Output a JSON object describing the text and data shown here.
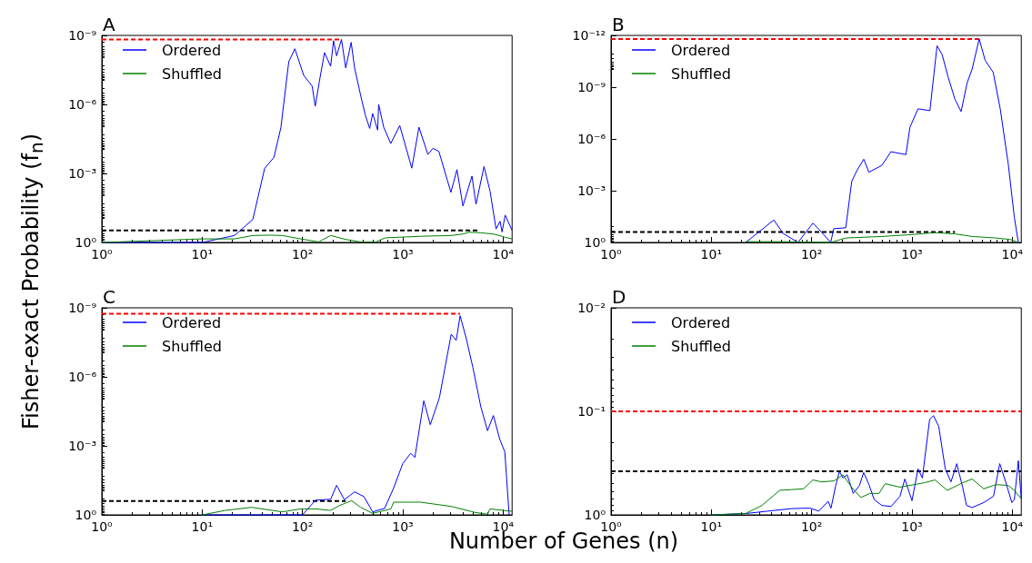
{
  "chart_data": [
    {
      "type": "line",
      "title": "A",
      "ylabel": "Fisher-exact Probability (f$_{n}$)",
      "log": "xy",
      "legend": "top left",
      "xlim": [
        1,
        12300
      ],
      "ylim": [
        1,
        1e-09
      ],
      "xticks": [
        {
          "value": 1,
          "label": "10⁰"
        },
        {
          "value": 10,
          "label": "10¹"
        },
        {
          "value": 100,
          "label": "10²"
        },
        {
          "value": 1000,
          "label": "10³"
        },
        {
          "value": 10000,
          "label": "10⁴"
        }
      ],
      "yticks": [
        {
          "value": 1,
          "label": "10⁰"
        },
        {
          "value": 0.001,
          "label": "10⁻³"
        },
        {
          "value": 1e-06,
          "label": "10⁻⁶"
        },
        {
          "value": 1e-09,
          "label": "10⁻⁹"
        }
      ],
      "series": [
        {
          "color": "#ff0000",
          "line_style": "dashed",
          "x": [
            1,
            245
          ],
          "values": [
            1.5e-09,
            1.5e-09
          ]
        },
        {
          "color": "#000000",
          "line_style": "dashed",
          "x": [
            1,
            5600
          ],
          "values": [
            0.3,
            0.3
          ]
        },
        {
          "name": "Ordered",
          "color": "#0000ff",
          "x": [
            1,
            10,
            21,
            32,
            42,
            52,
            61,
            73,
            84,
            103,
            125,
            134,
            150,
            166,
            191,
            204,
            219,
            245,
            270,
            306,
            331,
            380,
            423,
            468,
            501,
            562,
            575,
            646,
            759,
            933,
            1230,
            1450,
            1780,
            2000,
            2290,
            3020,
            3470,
            3980,
            4900,
            5370,
            6460,
            7410,
            8510,
            9330,
            9770,
            10500,
            12300
          ],
          "values": [
            1,
            1,
            0.5,
            0.1,
            0.0006,
            0.0002,
            1e-05,
            1.4e-08,
            3.8e-09,
            5.5e-08,
            1.6e-07,
            1.2e-06,
            6.5e-08,
            5.6e-09,
            2.2e-08,
            1.7e-09,
            7.7e-09,
            1.5e-09,
            2.6e-08,
            2e-09,
            2.6e-08,
            4e-07,
            2.9e-06,
            1.1e-05,
            2.5e-06,
            1.3e-05,
            1e-06,
            9.8e-06,
            5e-05,
            8.3e-06,
            0.00059,
            9.8e-06,
            0.00015,
            8.1e-05,
            0.00011,
            0.0066,
            0.00068,
            0.026,
            0.0013,
            0.022,
            0.0005,
            0.0058,
            0.26,
            0.12,
            0.35,
            0.065,
            0.3
          ]
        },
        {
          "name": "Shuffled",
          "color": "#008000",
          "x": [
            1,
            10,
            21,
            32,
            48,
            63,
            96,
            145,
            191,
            270,
            380,
            540,
            670,
            1500,
            3020,
            3980,
            4600,
            6000,
            8000,
            9770,
            10500,
            12300
          ],
          "values": [
            1,
            0.7,
            0.7,
            0.5,
            0.48,
            0.5,
            0.7,
            0.95,
            0.5,
            0.74,
            0.95,
            0.95,
            0.63,
            0.54,
            0.5,
            0.43,
            0.36,
            0.38,
            0.43,
            0.54,
            0.6,
            0.7
          ]
        }
      ]
    },
    {
      "type": "line",
      "title": "B",
      "log": "xy",
      "legend": "top left",
      "xlim": [
        1,
        12300
      ],
      "ylim": [
        1,
        1e-12
      ],
      "xticks": [
        {
          "value": 1,
          "label": "10⁰"
        },
        {
          "value": 10,
          "label": "10¹"
        },
        {
          "value": 100,
          "label": "10²"
        },
        {
          "value": 1000,
          "label": "10³"
        },
        {
          "value": 10000,
          "label": "10⁴"
        }
      ],
      "yticks": [
        {
          "value": 1,
          "label": "10⁰"
        },
        {
          "value": 0.001,
          "label": "10⁻³"
        },
        {
          "value": 1e-06,
          "label": "10⁻⁶"
        },
        {
          "value": 1e-09,
          "label": "10⁻⁹"
        },
        {
          "value": 1e-12,
          "label": "10⁻¹²"
        }
      ],
      "series": [
        {
          "color": "#ff0000",
          "line_style": "dashed",
          "x": [
            1,
            4680
          ],
          "values": [
            1.6e-12,
            1.6e-12
          ]
        },
        {
          "color": "#000000",
          "line_style": "dashed",
          "x": [
            1,
            2690
          ],
          "values": [
            0.25,
            0.25
          ]
        },
        {
          "name": "Ordered",
          "color": "#0000ff",
          "x": [
            22,
            42,
            52,
            73,
            103,
            118,
            155,
            166,
            219,
            251,
            282,
            331,
            372,
            501,
            617,
            871,
            955,
            1150,
            1510,
            1780,
            2000,
            2290,
            2690,
            3090,
            3550,
            3980,
            4680,
            5370,
            6460,
            7590,
            9120,
            10500,
            11500
          ],
          "values": [
            1,
            0.05,
            0.3,
            1,
            0.076,
            0.17,
            1,
            0.16,
            0.14,
            0.00029,
            7e-05,
            1.5e-05,
            8.5e-05,
            3.4e-05,
            5.5e-06,
            8.1e-06,
            2.1e-07,
            1.8e-08,
            2.3e-08,
            4e-12,
            1.3e-11,
            2.5e-10,
            5.2e-09,
            2.6e-08,
            5.6e-10,
            9e-11,
            1.6e-12,
            2.8e-11,
            1.4e-10,
            1.8e-08,
            2.8e-05,
            0.036,
            1
          ]
        },
        {
          "name": "Shuffled",
          "color": "#008000",
          "x": [
            22,
            52,
            155,
            219,
            501,
            1000,
            1690,
            2690,
            3980,
            6900,
            9500,
            11500
          ],
          "values": [
            0.9,
            0.9,
            1,
            0.55,
            0.45,
            0.35,
            0.27,
            0.32,
            0.45,
            0.55,
            0.67,
            1
          ]
        }
      ]
    },
    {
      "type": "line",
      "title": "C",
      "xlabel": "Number of Genes (n)",
      "log": "xy",
      "legend": "top left",
      "xlim": [
        1,
        12300
      ],
      "ylim": [
        1,
        1e-09
      ],
      "xticks": [
        {
          "value": 1,
          "label": "10⁰"
        },
        {
          "value": 10,
          "label": "10¹"
        },
        {
          "value": 100,
          "label": "10²"
        },
        {
          "value": 1000,
          "label": "10³"
        },
        {
          "value": 10000,
          "label": "10⁴"
        }
      ],
      "yticks": [
        {
          "value": 1,
          "label": "10⁰"
        },
        {
          "value": 0.001,
          "label": "10⁻³"
        },
        {
          "value": 1e-06,
          "label": "10⁻⁶"
        },
        {
          "value": 1e-09,
          "label": "10⁻⁹"
        }
      ],
      "series": [
        {
          "color": "#ff0000",
          "line_style": "dashed",
          "x": [
            1,
            3730
          ],
          "values": [
            1.8e-09,
            1.8e-09
          ]
        },
        {
          "color": "#000000",
          "line_style": "dashed",
          "x": [
            1,
            270
          ],
          "values": [
            0.25,
            0.25
          ]
        },
        {
          "name": "Ordered",
          "color": "#0000ff",
          "x": [
            10,
            100,
            135,
            191,
            219,
            262,
            331,
            410,
            501,
            660,
            813,
            1000,
            1200,
            1320,
            1620,
            1880,
            2320,
            3040,
            3410,
            3730,
            4300,
            5000,
            6000,
            7000,
            8000,
            9300,
            10400,
            11500
          ],
          "values": [
            1,
            1,
            0.23,
            0.21,
            0.052,
            0.22,
            0.1,
            0.16,
            0.74,
            0.52,
            0.066,
            0.0059,
            0.0021,
            0.0032,
            1.1e-05,
            0.00012,
            8e-06,
            1.4e-08,
            2.6e-08,
            2.2e-09,
            2.2e-08,
            3.9e-07,
            2e-05,
            0.00022,
            4.8e-05,
            0.00054,
            0.0018,
            1
          ]
        },
        {
          "name": "Shuffled",
          "color": "#008000",
          "x": [
            10,
            17,
            31,
            63,
            96,
            135,
            191,
            232,
            309,
            380,
            501,
            760,
            813,
            1500,
            3040,
            5300,
            7000,
            7400,
            10400,
            12300
          ],
          "values": [
            1,
            0.64,
            0.47,
            0.74,
            0.55,
            0.55,
            0.64,
            0.4,
            0.24,
            0.47,
            0.86,
            0.55,
            0.28,
            0.28,
            0.43,
            0.79,
            0.94,
            0.55,
            0.65,
            0.7
          ]
        }
      ]
    },
    {
      "type": "line",
      "title": "D",
      "log": "xy",
      "legend": "top left",
      "xlim": [
        1,
        12300
      ],
      "ylim": [
        1,
        0.01
      ],
      "xticks": [
        {
          "value": 1,
          "label": "10⁰"
        },
        {
          "value": 10,
          "label": "10¹"
        },
        {
          "value": 100,
          "label": "10²"
        },
        {
          "value": 1000,
          "label": "10³"
        },
        {
          "value": 10000,
          "label": "10⁴"
        }
      ],
      "yticks": [
        {
          "value": 1,
          "label": "10⁰"
        },
        {
          "value": 0.1,
          "label": "10⁻¹"
        },
        {
          "value": 0.01,
          "label": "10⁻²"
        }
      ],
      "series": [
        {
          "color": "#ff0000",
          "line_style": "dashed",
          "x": [
            1,
            12300
          ],
          "values": [
            0.1,
            0.1
          ]
        },
        {
          "color": "#000000",
          "line_style": "dashed",
          "x": [
            1,
            12300
          ],
          "values": [
            0.38,
            0.38
          ]
        },
        {
          "name": "Ordered",
          "color": "#0000ff",
          "x": [
            10,
            22,
            63,
            96,
            118,
            146,
            156,
            174,
            189,
            205,
            226,
            260,
            300,
            330,
            370,
            420,
            500,
            620,
            760,
            850,
            1000,
            1150,
            1270,
            1500,
            1640,
            1850,
            2150,
            2450,
            2800,
            3200,
            3500,
            3980,
            5200,
            6500,
            7500,
            8600,
            9900,
            10500,
            11500,
            12300
          ],
          "values": [
            1,
            0.97,
            0.87,
            0.86,
            0.92,
            0.74,
            0.86,
            0.52,
            0.38,
            0.44,
            0.41,
            0.62,
            0.52,
            0.39,
            0.5,
            0.71,
            0.81,
            0.83,
            0.66,
            0.45,
            0.73,
            0.36,
            0.44,
            0.12,
            0.11,
            0.14,
            0.36,
            0.48,
            0.32,
            0.54,
            0.81,
            0.85,
            0.76,
            0.66,
            0.32,
            0.48,
            0.76,
            0.71,
            0.3,
            0.7
          ]
        },
        {
          "name": "Shuffled",
          "color": "#008000",
          "x": [
            10,
            22,
            32,
            48,
            63,
            83,
            103,
            126,
            167,
            205,
            250,
            310,
            380,
            470,
            540,
            760,
            940,
            1320,
            1700,
            2250,
            3200,
            3980,
            5200,
            6900,
            9100,
            10500,
            12300
          ],
          "values": [
            1,
            0.97,
            0.81,
            0.58,
            0.57,
            0.56,
            0.46,
            0.48,
            0.47,
            0.41,
            0.54,
            0.68,
            0.62,
            0.62,
            0.5,
            0.54,
            0.52,
            0.49,
            0.46,
            0.58,
            0.49,
            0.45,
            0.56,
            0.51,
            0.52,
            0.58,
            0.7
          ]
        }
      ]
    }
  ]
}
